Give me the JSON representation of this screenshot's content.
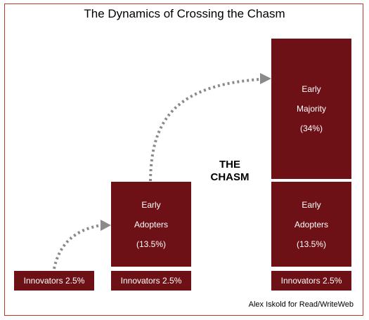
{
  "title": "The Dynamics of Crossing the Chasm",
  "chasm_label": [
    "THE",
    "CHASM"
  ],
  "credit": "Alex Iskold for Read/WriteWeb",
  "colors": {
    "box_fill": "#6e1116",
    "border": "#c0392b",
    "arrow": "#8a8a8a"
  },
  "stages": [
    {
      "innovators": "Innovators 2.5%"
    },
    {
      "innovators": "Innovators 2.5%",
      "early_adopters": [
        "Early",
        "Adopters",
        "(13.5%)"
      ]
    },
    {
      "innovators": "Innovators 2.5%",
      "early_adopters": [
        "Early",
        "Adopters",
        "(13.5%)"
      ],
      "early_majority": [
        "Early",
        "Majority",
        "(34%)"
      ]
    }
  ]
}
